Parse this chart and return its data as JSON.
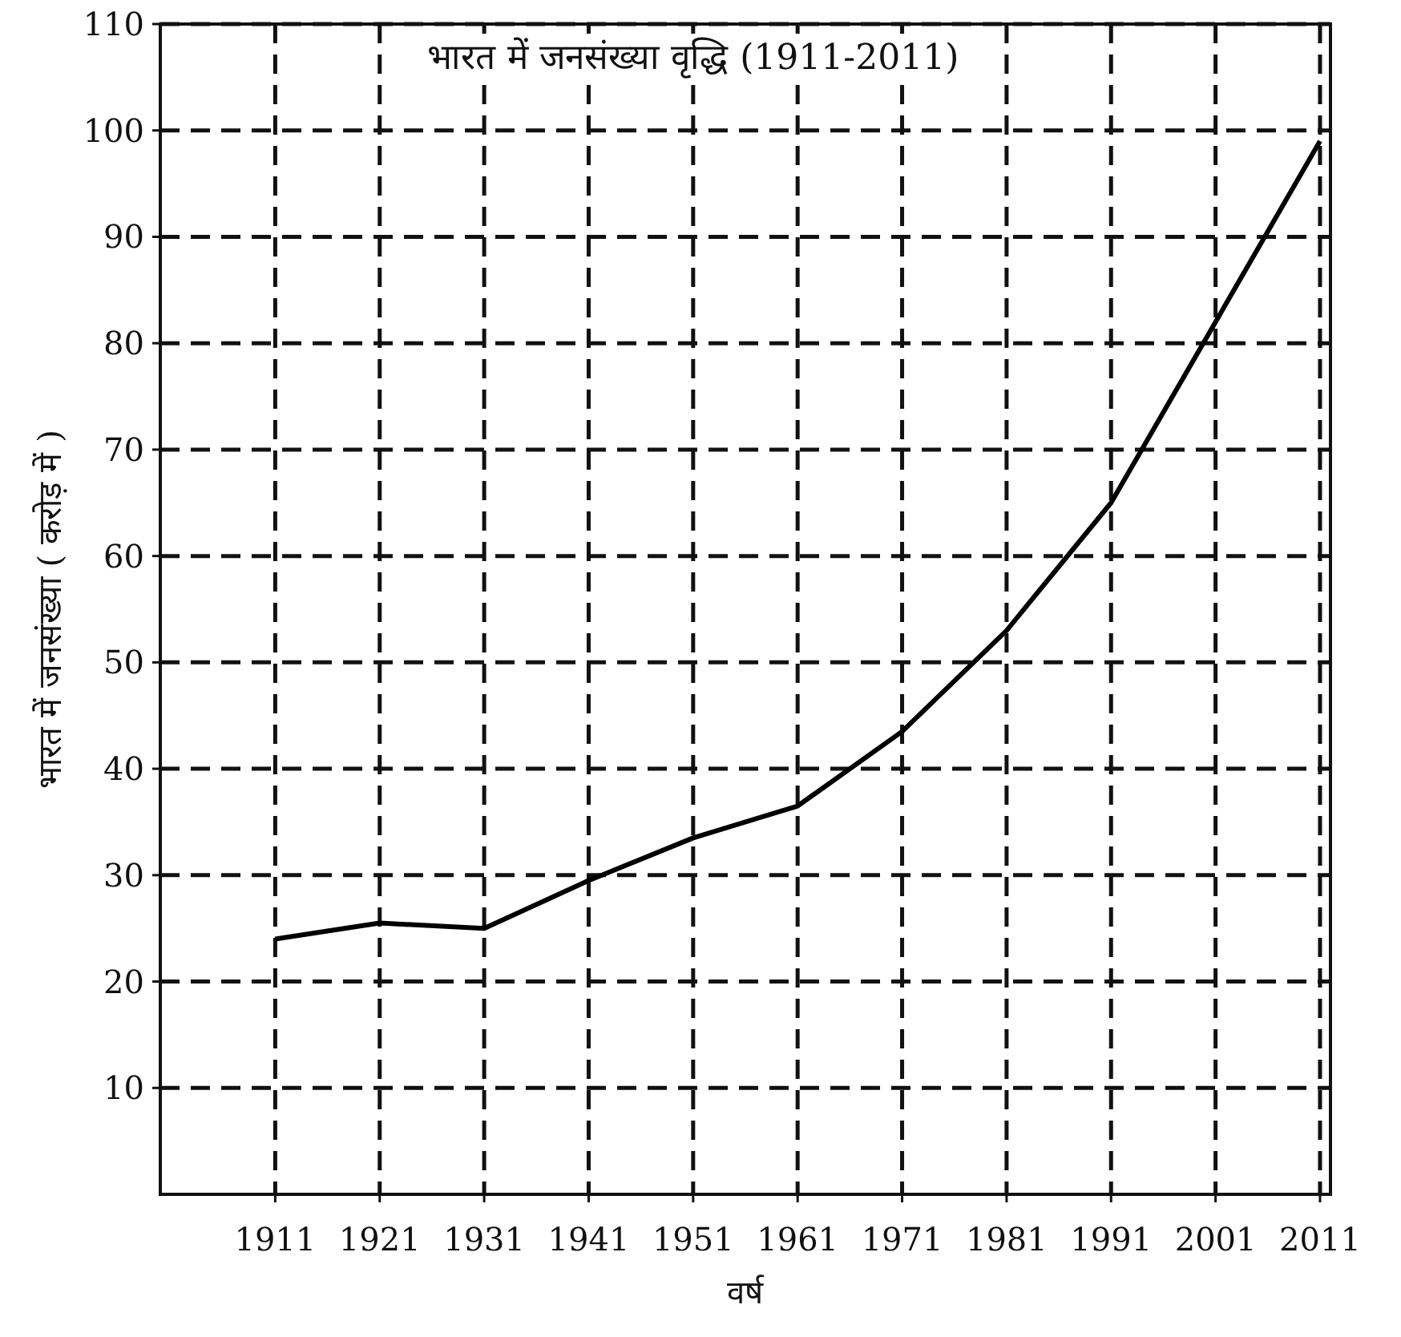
{
  "chart_data": {
    "type": "line",
    "title": "भारत में जनसंख्या वृद्धि (1911-2011)",
    "xlabel": "वर्ष",
    "ylabel": "भारत में जनसंख्या ( करोड़ में )",
    "x": [
      1911,
      1921,
      1931,
      1941,
      1951,
      1961,
      1971,
      1981,
      1991,
      2001,
      2011
    ],
    "series": [
      {
        "color": "#000000",
        "values": [
          24,
          25.5,
          25,
          29.5,
          33.5,
          36.5,
          43.5,
          53,
          65,
          82,
          99
        ]
      }
    ],
    "xlim": [
      1900,
      2012
    ],
    "xticks": [
      1911,
      1921,
      1931,
      1941,
      1951,
      1961,
      1971,
      1981,
      1991,
      2001,
      2011
    ],
    "ylim": [
      0,
      110
    ],
    "yticks": [
      10,
      20,
      30,
      40,
      50,
      60,
      70,
      80,
      90,
      100,
      110
    ],
    "grid": true,
    "marker": "none",
    "line_style": "solid"
  }
}
